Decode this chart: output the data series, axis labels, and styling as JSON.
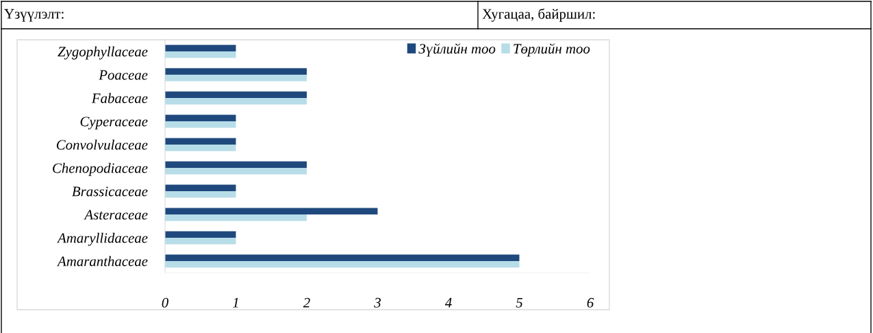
{
  "chart_data": {
    "type": "bar",
    "orientation": "horizontal",
    "annotations": [
      "Үзүүлэлт:",
      "Хугацаа, байршил:"
    ],
    "categories": [
      "Zygophyllaceae",
      "Poaceae",
      "Fabaceae",
      "Cyperaceae",
      "Convolvulaceae",
      "Chenopodiaceae",
      "Brassicaceae",
      "Asteraceae",
      "Amaryllidaceae",
      "Amaranthaceae"
    ],
    "series": [
      {
        "name": "Зүйлийн тоо",
        "color": "#1f497d",
        "values": [
          1,
          2,
          2,
          1,
          1,
          2,
          1,
          3,
          1,
          5
        ]
      },
      {
        "name": "Төрлийн тоо",
        "color": "#b7dde8",
        "values": [
          1,
          2,
          2,
          1,
          1,
          2,
          1,
          2,
          1,
          5
        ]
      }
    ],
    "xlim": [
      0,
      6
    ],
    "xticks": [
      0,
      1,
      2,
      3,
      4,
      5,
      6
    ],
    "grid": false,
    "legend": "top right"
  }
}
